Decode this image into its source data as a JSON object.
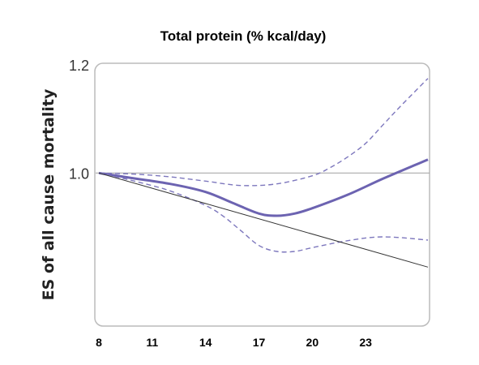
{
  "chart_data": {
    "type": "line",
    "title": "Total protein (% kcal/day)",
    "xlabel": "",
    "ylabel": "ES of all cause mortality",
    "xlim": [
      8,
      26.5
    ],
    "ylim": [
      0.72,
      1.2
    ],
    "x_ticks": [
      "8",
      "11",
      "14",
      "17",
      "20",
      "23"
    ],
    "y_ticks": [
      "1.2",
      "1.0"
    ],
    "grid": false,
    "reference_line_y": 1.0,
    "colors": {
      "estimate": "#6c63b1",
      "ci": "#7d77bd",
      "trend": "#333333",
      "reference": "#aaaaaa",
      "frame": "#bbbbbb"
    },
    "series": [
      {
        "style": "solid-thick",
        "x": [
          8,
          10,
          12,
          14,
          15.5,
          17,
          18,
          19,
          20,
          22,
          24,
          26.5
        ],
        "y": [
          1.0,
          0.99,
          0.98,
          0.965,
          0.945,
          0.925,
          0.921,
          0.925,
          0.935,
          0.96,
          0.99,
          1.025
        ]
      },
      {
        "style": "dashed-upper",
        "x": [
          8,
          10,
          12,
          14,
          16,
          18,
          20,
          21,
          22,
          23,
          24,
          25,
          26.5
        ],
        "y": [
          1.0,
          0.998,
          0.993,
          0.985,
          0.977,
          0.98,
          0.995,
          1.01,
          1.03,
          1.055,
          1.09,
          1.125,
          1.175
        ]
      },
      {
        "style": "dashed-lower",
        "x": [
          8,
          10,
          12,
          14,
          15,
          16,
          17,
          18,
          19,
          20,
          22,
          24,
          26.5
        ],
        "y": [
          1.0,
          0.985,
          0.967,
          0.94,
          0.92,
          0.893,
          0.866,
          0.855,
          0.855,
          0.862,
          0.875,
          0.882,
          0.876
        ]
      },
      {
        "style": "thin-trend",
        "x": [
          8,
          26.5
        ],
        "y": [
          1.0,
          0.826
        ]
      }
    ]
  }
}
